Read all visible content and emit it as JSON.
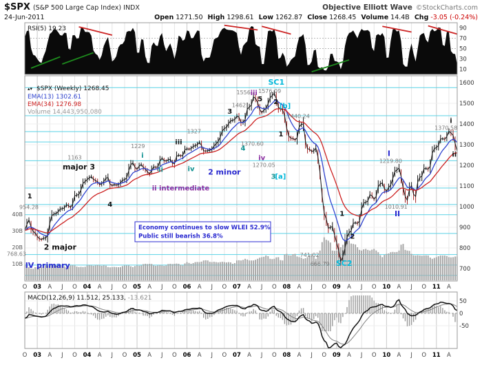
{
  "header": {
    "symbol": "$SPX",
    "symbol_desc": "(S&P 500 Large Cap Index) INDX",
    "date": "24-Jun-2011",
    "watermark": "Objective Elliott Wave",
    "credit": "©StockCharts.com",
    "quote": {
      "open_label": "Open",
      "open_value": "1271.50",
      "high_label": "High",
      "high_value": "1298.61",
      "low_label": "Low",
      "low_value": "1262.87",
      "close_label": "Close",
      "close_value": "1268.45",
      "volume_label": "Volume",
      "volume_value": "14.4B",
      "chg_label": "Chg",
      "chg_value": "-3.05 (-0.24%)"
    }
  },
  "panels": {
    "rsi": {
      "legend": "RSI(5) 19.23",
      "yticks": [
        90,
        70,
        50,
        30,
        10
      ]
    },
    "main": {
      "legend": {
        "updown_icon": "▴▾",
        "title": "$SPX (Weekly) 1268.45",
        "ema13": "EMA(13) 1302.61",
        "ema34": "EMA(34) 1276.98",
        "volume": "Volume 14,443,950,080"
      },
      "yticks": [
        1600,
        1500,
        1400,
        1300,
        1200,
        1100,
        1000,
        900,
        800,
        700
      ],
      "vol_ticks": [
        {
          "v": 40,
          "t": "40B"
        },
        {
          "v": 30,
          "t": "30B"
        },
        {
          "v": 20,
          "t": "20B"
        },
        {
          "v": 10,
          "t": "10B"
        }
      ]
    },
    "macd": {
      "legend_name": "MACD(12,26,9)",
      "legend_values": " 11.512, 25.133,",
      "legend_hist": " -13.621",
      "yticks": [
        [
          50,
          "50"
        ],
        [
          0,
          "0"
        ],
        [
          -50,
          "-50"
        ]
      ]
    }
  },
  "xaxis": {
    "ticks": [
      [
        0,
        "O",
        0
      ],
      [
        3,
        "03",
        1
      ],
      [
        6,
        "A",
        0
      ],
      [
        9,
        "J",
        0
      ],
      [
        12,
        "O",
        0
      ],
      [
        15,
        "04",
        1
      ],
      [
        18,
        "A",
        0
      ],
      [
        21,
        "J",
        0
      ],
      [
        24,
        "O",
        0
      ],
      [
        27,
        "05",
        1
      ],
      [
        30,
        "A",
        0
      ],
      [
        33,
        "J",
        0
      ],
      [
        36,
        "O",
        0
      ],
      [
        39,
        "06",
        1
      ],
      [
        42,
        "A",
        0
      ],
      [
        45,
        "J",
        0
      ],
      [
        48,
        "O",
        0
      ],
      [
        51,
        "07",
        1
      ],
      [
        54,
        "A",
        0
      ],
      [
        57,
        "J",
        0
      ],
      [
        60,
        "O",
        0
      ],
      [
        63,
        "08",
        1
      ],
      [
        66,
        "A",
        0
      ],
      [
        69,
        "J",
        0
      ],
      [
        72,
        "O",
        0
      ],
      [
        75,
        "09",
        1
      ],
      [
        78,
        "A",
        0
      ],
      [
        81,
        "J",
        0
      ],
      [
        84,
        "O",
        0
      ],
      [
        87,
        "10",
        1
      ],
      [
        90,
        "A",
        0
      ],
      [
        93,
        "J",
        0
      ],
      [
        96,
        "O",
        0
      ],
      [
        99,
        "11",
        1
      ],
      [
        102,
        "A",
        0
      ]
    ]
  },
  "colors": {
    "ema13": "#2f43cf",
    "ema34": "#cc2020",
    "pivot": "#5ad2e6",
    "volume_bar": "#a8a8a8",
    "chg_negative": "#cc0000",
    "rsi_trend_red": "#cc2222",
    "rsi_trend_green": "#1d8a1d",
    "text_palette": {
      "black": "#111111",
      "gray": "#7a7a7a",
      "blue": "#2a2ad0",
      "cyan": "#00b7d9",
      "teal": "#0d9090",
      "purple": "#8a2da0"
    }
  },
  "chart_data": {
    "type": "line",
    "title": "$SPX weekly chart with RSI(5), volume and MACD(12,26,9), Elliott Wave annotated",
    "x_start": "Oct-2002",
    "x_end": "Jun-2011",
    "sampling": "monthly",
    "price_ylim": [
      700,
      1600
    ],
    "rsi_ylim": [
      0,
      100
    ],
    "macd_ylim": [
      -180,
      75
    ],
    "series": [
      {
        "name": "$SPX close",
        "values": [
          885,
          936,
          880,
          856,
          841,
          848,
          917,
          964,
          975,
          990,
          1008,
          996,
          1051,
          1058,
          1112,
          1131,
          1145,
          1126,
          1107,
          1121,
          1141,
          1102,
          1104,
          1115,
          1130,
          1174,
          1212,
          1181,
          1204,
          1181,
          1157,
          1192,
          1191,
          1234,
          1220,
          1229,
          1207,
          1249,
          1248,
          1280,
          1281,
          1295,
          1311,
          1270,
          1270,
          1277,
          1304,
          1336,
          1378,
          1401,
          1418,
          1438,
          1407,
          1421,
          1482,
          1531,
          1503,
          1455,
          1474,
          1527,
          1549,
          1481,
          1468,
          1379,
          1331,
          1323,
          1386,
          1400,
          1280,
          1267,
          1283,
          1166,
          969,
          896,
          903,
          826,
          735,
          798,
          873,
          919,
          919,
          987,
          1021,
          1057,
          1036,
          1096,
          1115,
          1074,
          1104,
          1169,
          1187,
          1089,
          1031,
          1102,
          1049,
          1141,
          1183,
          1181,
          1258,
          1286,
          1327,
          1326,
          1364,
          1345,
          1268.45
        ]
      },
      {
        "name": "RSI(5)",
        "values": [
          72,
          85,
          38,
          30,
          22,
          45,
          78,
          88,
          82,
          75,
          80,
          48,
          76,
          70,
          90,
          82,
          75,
          40,
          28,
          55,
          72,
          25,
          35,
          58,
          65,
          84,
          90,
          42,
          68,
          35,
          22,
          62,
          55,
          80,
          45,
          60,
          30,
          75,
          65,
          85,
          70,
          78,
          84,
          25,
          32,
          48,
          70,
          82,
          90,
          86,
          85,
          80,
          38,
          60,
          88,
          92,
          55,
          20,
          52,
          85,
          88,
          30,
          42,
          15,
          28,
          35,
          72,
          78,
          18,
          25,
          48,
          12,
          8,
          15,
          40,
          25,
          10,
          55,
          80,
          85,
          70,
          88,
          85,
          82,
          45,
          78,
          80,
          32,
          65,
          88,
          85,
          20,
          15,
          60,
          25,
          75,
          80,
          62,
          88,
          85,
          90,
          55,
          82,
          40,
          19.23
        ]
      },
      {
        "name": "MACD(12,26,9) line",
        "values": [
          -20,
          -5,
          -8,
          -12,
          -15,
          -12,
          5,
          20,
          28,
          30,
          30,
          26,
          30,
          30,
          34,
          32,
          28,
          18,
          8,
          5,
          8,
          0,
          -4,
          0,
          5,
          14,
          20,
          14,
          12,
          6,
          -2,
          2,
          4,
          12,
          10,
          10,
          2,
          8,
          10,
          16,
          18,
          20,
          22,
          8,
          0,
          0,
          8,
          16,
          24,
          30,
          32,
          32,
          22,
          18,
          28,
          36,
          30,
          12,
          8,
          20,
          28,
          10,
          0,
          -22,
          -32,
          -34,
          -15,
          -5,
          -28,
          -40,
          -35,
          -60,
          -110,
          -140,
          -130,
          -120,
          -140,
          -125,
          -90,
          -60,
          -40,
          -12,
          8,
          22,
          26,
          32,
          36,
          28,
          24,
          34,
          55,
          25,
          0,
          -10,
          -8,
          5,
          15,
          20,
          30,
          38,
          45,
          42,
          40,
          30,
          11.5
        ]
      },
      {
        "name": "Weekly volume (billions)",
        "values": [
          9,
          8,
          7,
          8,
          8,
          9,
          9,
          9,
          9,
          9,
          8,
          9,
          9,
          8,
          8,
          9,
          9,
          9,
          9,
          9,
          8,
          8,
          8,
          8,
          9,
          9,
          8,
          9,
          9,
          10,
          10,
          9,
          9,
          9,
          9,
          10,
          10,
          10,
          9,
          11,
          10,
          11,
          11,
          12,
          12,
          11,
          11,
          11,
          11,
          11,
          10,
          12,
          12,
          13,
          12,
          12,
          13,
          14,
          15,
          13,
          13,
          14,
          12,
          16,
          15,
          16,
          14,
          13,
          14,
          16,
          13,
          18,
          26,
          24,
          18,
          18,
          20,
          28,
          24,
          22,
          20,
          18,
          19,
          18,
          19,
          17,
          14,
          16,
          17,
          17,
          18,
          22,
          18,
          16,
          15,
          15,
          15,
          15,
          13,
          14,
          15,
          15,
          14,
          14,
          14.4
        ]
      }
    ],
    "pivot_levels": [
      1576,
      1440,
      1363,
      1313,
      1222,
      1090,
      1010,
      961,
      870,
      768,
      717,
      667
    ],
    "rsi_trendlines": {
      "red": [
        [
          13,
          92,
          21,
          76
        ],
        [
          48,
          95,
          56,
          86
        ],
        [
          57,
          93,
          64,
          78
        ],
        [
          86,
          93,
          93,
          82
        ],
        [
          97,
          94,
          104,
          78
        ]
      ],
      "green": [
        [
          1.5,
          12,
          8.5,
          34
        ],
        [
          9,
          20,
          16.5,
          42
        ],
        [
          69,
          5,
          78,
          28
        ]
      ]
    },
    "annotations": [
      {
        "t": "1",
        "c": "black",
        "fs": 10,
        "b": true,
        "i": 1.2,
        "p": 1040
      },
      {
        "t": "954.28",
        "c": "gray",
        "fs": 8,
        "b": false,
        "i": 1.0,
        "p": 988
      },
      {
        "t": "2 major",
        "c": "black",
        "fs": 11,
        "b": true,
        "i": 8.5,
        "p": 792
      },
      {
        "t": "768.63",
        "c": "gray",
        "fs": 8,
        "b": false,
        "i": -2.0,
        "p": 762
      },
      {
        "t": "IV primary",
        "c": "blue",
        "fs": 11,
        "b": true,
        "i": 5.5,
        "p": 703
      },
      {
        "t": "major 3",
        "c": "black",
        "fs": 11,
        "b": true,
        "i": 13.0,
        "p": 1180
      },
      {
        "t": "1163",
        "c": "gray",
        "fs": 8,
        "b": false,
        "i": 12.0,
        "p": 1228
      },
      {
        "t": "4",
        "c": "black",
        "fs": 10,
        "b": true,
        "i": 20.5,
        "p": 1000
      },
      {
        "t": "1229",
        "c": "gray",
        "fs": 8,
        "b": false,
        "i": 27.2,
        "p": 1283
      },
      {
        "t": "i",
        "c": "teal",
        "fs": 10,
        "b": true,
        "i": 28.3,
        "p": 1237
      },
      {
        "t": "ii",
        "c": "teal",
        "fs": 10,
        "b": true,
        "i": 32.7,
        "p": 1168
      },
      {
        "t": "iii",
        "c": "black",
        "fs": 10,
        "b": true,
        "i": 37.0,
        "p": 1302
      },
      {
        "t": "1327",
        "c": "gray",
        "fs": 8,
        "b": false,
        "i": 40.7,
        "p": 1355
      },
      {
        "t": "iv",
        "c": "teal",
        "fs": 10,
        "b": true,
        "i": 40.0,
        "p": 1172
      },
      {
        "t": "2 minor",
        "c": "blue",
        "fs": 11,
        "b": true,
        "i": 48.0,
        "p": 1155
      },
      {
        "t": "ii intermediate",
        "c": "purple",
        "fs": 10,
        "b": true,
        "i": 37.5,
        "p": 1078
      },
      {
        "t": "3",
        "c": "black",
        "fs": 10,
        "b": true,
        "i": 49.3,
        "p": 1450
      },
      {
        "t": "1462",
        "c": "gray",
        "fs": 8,
        "b": false,
        "i": 51.5,
        "p": 1482
      },
      {
        "t": "1556",
        "c": "gray",
        "fs": 8,
        "b": false,
        "i": 52.6,
        "p": 1543
      },
      {
        "t": "iii",
        "c": "purple",
        "fs": 10,
        "b": true,
        "i": 55.1,
        "p": 1540
      },
      {
        "t": "5",
        "c": "black",
        "fs": 10,
        "b": true,
        "i": 56.6,
        "p": 1510
      },
      {
        "t": "1576.09",
        "c": "gray",
        "fs": 8,
        "b": false,
        "i": 58.9,
        "p": 1550
      },
      {
        "t": "SC1",
        "c": "cyan",
        "fs": 11,
        "b": true,
        "i": 60.5,
        "p": 1590
      },
      {
        "t": "2",
        "c": "black",
        "fs": 10,
        "b": true,
        "i": 60.4,
        "p": 1497
      },
      {
        "t": "[b]",
        "c": "cyan",
        "fs": 10,
        "b": true,
        "i": 62.6,
        "p": 1477
      },
      {
        "t": "1440.24",
        "c": "gray",
        "fs": 8,
        "b": false,
        "i": 65.8,
        "p": 1428
      },
      {
        "t": "4",
        "c": "teal",
        "fs": 10,
        "b": true,
        "i": 52.5,
        "p": 1272
      },
      {
        "t": "1370.60",
        "c": "gray",
        "fs": 8,
        "b": false,
        "i": 54.7,
        "p": 1295
      },
      {
        "t": "iv",
        "c": "purple",
        "fs": 10,
        "b": true,
        "i": 57.0,
        "p": 1225
      },
      {
        "t": "1270.05",
        "c": "gray",
        "fs": 8,
        "b": false,
        "i": 57.5,
        "p": 1192
      },
      {
        "t": "1",
        "c": "black",
        "fs": 10,
        "b": true,
        "i": 61.6,
        "p": 1340
      },
      {
        "t": "3",
        "c": "teal",
        "fs": 10,
        "b": true,
        "i": 59.8,
        "p": 1135
      },
      {
        "t": "[a]",
        "c": "cyan",
        "fs": 10,
        "b": true,
        "i": 61.5,
        "p": 1135
      },
      {
        "t": "741.02",
        "c": "gray",
        "fs": 8,
        "b": false,
        "i": 68.5,
        "p": 757
      },
      {
        "t": "666.79",
        "c": "gray",
        "fs": 8,
        "b": false,
        "i": 71.0,
        "p": 713
      },
      {
        "t": "SC2",
        "c": "cyan",
        "fs": 11,
        "b": true,
        "i": 76.8,
        "p": 713
      },
      {
        "t": "1",
        "c": "black",
        "fs": 10,
        "b": true,
        "i": 76.3,
        "p": 955
      },
      {
        "t": "2",
        "c": "black",
        "fs": 10,
        "b": true,
        "i": 78.8,
        "p": 845
      },
      {
        "t": "I",
        "c": "blue",
        "fs": 11,
        "b": true,
        "i": 87.6,
        "p": 1245
      },
      {
        "t": "1219.80",
        "c": "gray",
        "fs": 8,
        "b": false,
        "i": 88.0,
        "p": 1212
      },
      {
        "t": "1010.91",
        "c": "gray",
        "fs": 8,
        "b": false,
        "i": 89.3,
        "p": 990
      },
      {
        "t": "II",
        "c": "blue",
        "fs": 11,
        "b": true,
        "i": 89.6,
        "p": 953
      },
      {
        "t": "i",
        "c": "black",
        "fs": 10,
        "b": true,
        "i": 102.5,
        "p": 1405
      },
      {
        "t": "1370.58",
        "c": "gray",
        "fs": 8,
        "b": false,
        "i": 101.3,
        "p": 1372
      },
      {
        "t": "ii",
        "c": "black",
        "fs": 10,
        "b": true,
        "i": 103.3,
        "p": 1242
      }
    ],
    "note_box": {
      "lines": [
        "Economy continues to slow WLEI 52.9%",
        "Public still bearish 36.8%"
      ]
    },
    "last_values": {
      "close": 1268.45,
      "ema13": 1302.61,
      "ema34": 1276.98,
      "rsi5": 19.23,
      "macd": [
        11.512,
        25.133,
        -13.621
      ],
      "volume": "14.4B"
    }
  }
}
